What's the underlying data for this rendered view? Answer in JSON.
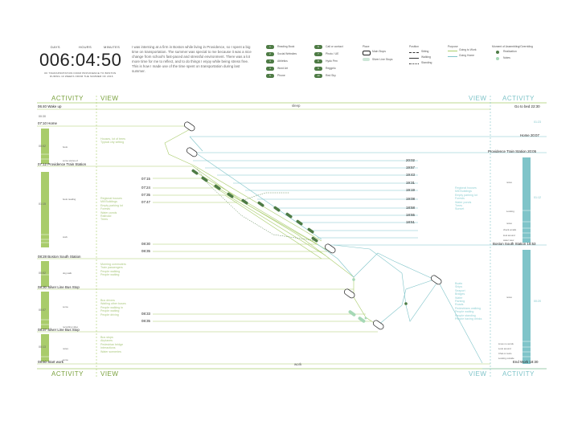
{
  "header": {
    "days_label": "DAYS",
    "hours_label": "HOURS",
    "minutes_label": "MINUTES",
    "timer": "006:04:50",
    "caption_line1": "OF TRANSPORTATION FROM PROVIDENCE TO BOSTON",
    "caption_line2": "DURING 10 WEEKS FROM THE SUMMER OF 2016",
    "intro_text": "I was interning at a firm in Boston while living in Providence, so I spent a big time on transportation. The summer was special to me because it was a nice change from school's fast-paced and stressful environment. There was a lot more time for me to reflect, and to do things I enjoy while being stress free. This is how I made use of the time spent on transportation during last summer."
  },
  "legend_activities": [
    {
      "num": "1",
      "label": "Reading Book"
    },
    {
      "num": "2",
      "label": "Social Websites"
    },
    {
      "num": "3",
      "label": "Athletics"
    },
    {
      "num": "4",
      "label": "Word Art"
    },
    {
      "num": "5",
      "label": "Phone"
    },
    {
      "num": "6",
      "label": "Call or contact"
    },
    {
      "num": "7",
      "label": "Photo / UE"
    },
    {
      "num": "8",
      "label": "Hydo Pen"
    },
    {
      "num": "9",
      "label": "Reggelo"
    },
    {
      "num": "10",
      "label": "Red Sky"
    }
  ],
  "legend_places": {
    "title": "Place",
    "main_stops": "Main Stops",
    "silver_stops": "Silver Line Stops"
  },
  "legend_position": {
    "title": "Position",
    "sitting": "Sitting",
    "walking": "Walking",
    "standing": "Standing"
  },
  "legend_purpose": {
    "title": "Purpose",
    "to_work": "Going to Work",
    "to_home": "Going Home"
  },
  "legend_moment": {
    "title": "Moment of Assembling/Overriding",
    "realization": "Realization",
    "notes": "Notes"
  },
  "titles": {
    "activity": "ACTIVITY",
    "view": "VIEW",
    "sleep": "sleep",
    "work": "work"
  },
  "left_events": [
    {
      "time": "06:40",
      "label": "Wake up"
    },
    {
      "time": "07:10",
      "label": "Home"
    },
    {
      "time": "07:12",
      "label": "Providence Train Station"
    },
    {
      "time": "08:28",
      "label": "Boston South Station"
    },
    {
      "time": "08:30",
      "label": "Silver Line Bus Stop"
    },
    {
      "time": "08:37",
      "label": "Silver Line Bus Stop"
    },
    {
      "time": "08:50",
      "label": "Start work"
    }
  ],
  "left_duration": [
    "00:30",
    "00:02",
    "01:15",
    "00:02",
    "00:07",
    "00:13"
  ],
  "right_events": [
    {
      "label": "Go to bed",
      "time": "22:30"
    },
    {
      "label": "Home",
      "time": "20:07"
    },
    {
      "label": "Providence Train Station",
      "time": "20:05"
    },
    {
      "label": "Boston South Station",
      "time": "18:53"
    },
    {
      "label": "End Work",
      "time": "18:30"
    }
  ],
  "right_duration": [
    "01:23",
    "01:12",
    "00:20"
  ],
  "train_times_left": [
    "07:15",
    "07:24",
    "07:35",
    "07:47",
    "08:30",
    "08:35",
    "08:33",
    "08:35"
  ],
  "train_times_right": [
    "20:02",
    "19:57",
    "19:43",
    "19:31",
    "19:19",
    "19:08",
    "18:58",
    "18:55",
    "18:51"
  ],
  "view_notes_left": [
    [
      "Houses, lot of trees",
      "Typical city setting"
    ],
    [
      "Regional houses",
      "Mill Buildings",
      "Empty parking lot",
      "Forests",
      "Water ponds",
      "Railroad",
      "Trees"
    ],
    [
      "Morning commuters",
      "Train passengers",
      "People walking",
      "People waiting"
    ],
    [
      "Bus drivers",
      "Waiting other buses",
      "People walking in",
      "People waiting",
      "People driving"
    ],
    [
      "Bus stops",
      "Airplanes",
      "Pedestrian bridge",
      "Interactions",
      "Water sceneries"
    ]
  ],
  "view_notes_right": [
    [
      "Regional houses",
      "Mill Buildings",
      "Empty parking lot",
      "Forests",
      "Water ponds",
      "Trees",
      "Sunset"
    ],
    [
      "Boats",
      "Ships",
      "Seaport",
      "Bridges",
      "Water",
      "Parking",
      "Roads",
      "Pedestrians walking",
      "People waiting",
      "People standing",
      "People having drinks"
    ]
  ],
  "bar_small_labels_left": [
    "book",
    "some stories of",
    "book reading",
    "work",
    "dog walk",
    "some",
    "recording video",
    "notes",
    "some"
  ],
  "bar_small_labels_right": [
    "notes",
    "Looking",
    "notes",
    "check emails",
    "look around",
    "water view",
    "notes",
    "Lines no words",
    "Look around",
    "Chat on texts",
    "Looking outside"
  ],
  "colors": {
    "green": "#a9cc6b",
    "dark_green": "#4e7b45",
    "blue": "#7fc4c9",
    "gray_green": "#bdd59a"
  }
}
